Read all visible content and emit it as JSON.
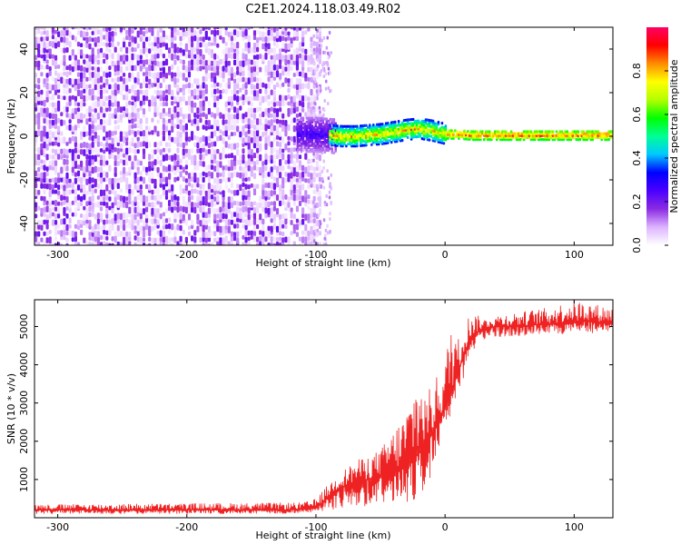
{
  "title": "C2E1.2024.118.03.49.R02",
  "chart_data": [
    {
      "type": "heatmap",
      "xlabel": "Height of straight line (km)",
      "ylabel": "Frequency (Hz)",
      "xlim": [
        -318,
        130
      ],
      "ylim": [
        -50,
        50
      ],
      "xticks": [
        -300,
        -200,
        -100,
        0,
        100
      ],
      "yticks": [
        -40,
        -20,
        0,
        20,
        40
      ],
      "colorbar": {
        "label": "Normalized spectral amplitude",
        "range": [
          0,
          1
        ],
        "ticks": [
          0.0,
          0.2,
          0.4,
          0.6,
          0.8
        ],
        "colormap": [
          "#ffffff",
          "#dcb4ff",
          "#8a2be2",
          "#4b00ff",
          "#0000ff",
          "#00c8ff",
          "#00ff96",
          "#00ff00",
          "#b4ff00",
          "#ffff00",
          "#ff8c00",
          "#ff0000",
          "#ff0064"
        ]
      },
      "regions": [
        {
          "x_range": [
            -318,
            -97
          ],
          "freq_range": [
            -50,
            50
          ],
          "amplitude_range": [
            0.0,
            0.2
          ],
          "description": "broadband noise"
        },
        {
          "x_range": [
            -115,
            -85
          ],
          "freq_range": [
            -8,
            8
          ],
          "amplitude_range": [
            0.1,
            0.3
          ]
        },
        {
          "x_range": [
            -90,
            0
          ],
          "freq_range": [
            -3,
            6
          ],
          "amplitude_range": [
            0.3,
            0.9
          ]
        },
        {
          "x_range": [
            0,
            130
          ],
          "freq_range": [
            -2,
            2
          ],
          "amplitude_range": [
            0.5,
            0.95
          ]
        }
      ],
      "signal_track": {
        "x": [
          -112,
          -100,
          -90,
          -80,
          -70,
          -60,
          -50,
          -40,
          -30,
          -20,
          -10,
          0,
          10,
          20,
          40,
          60,
          80,
          100,
          120,
          130
        ],
        "freq": [
          1.0,
          1.0,
          0.5,
          0.0,
          0.0,
          0.5,
          1.0,
          2.0,
          3.0,
          3.5,
          2.5,
          1.0,
          1.0,
          0.5,
          0.5,
          0.5,
          0.5,
          0.5,
          0.5,
          0.5
        ]
      }
    },
    {
      "type": "line",
      "xlabel": "Height of straight line (km)",
      "ylabel": "SNR (10 * v/v)",
      "xlim": [
        -318,
        130
      ],
      "ylim": [
        0,
        5700
      ],
      "xticks": [
        -300,
        -200,
        -100,
        0,
        100
      ],
      "yticks": [
        1000,
        2000,
        3000,
        4000,
        5000
      ],
      "color": "#ee2222",
      "series": [
        {
          "x": [
            -318,
            -300,
            -250,
            -200,
            -150,
            -120,
            -100,
            -95,
            -90,
            -85,
            -80,
            -70,
            -60,
            -50,
            -40,
            -30,
            -25,
            -20,
            -15,
            -10,
            -5,
            0,
            5,
            10,
            15,
            20,
            25,
            30,
            40,
            50,
            60,
            70,
            80,
            90,
            100,
            110,
            120,
            130
          ],
          "y": [
            200,
            210,
            200,
            210,
            200,
            210,
            250,
            400,
            550,
            700,
            800,
            900,
            1000,
            1100,
            1200,
            1400,
            1500,
            1700,
            1900,
            2200,
            2500,
            2900,
            3300,
            3800,
            4300,
            4700,
            4850,
            4950,
            5000,
            5000,
            5000,
            5050,
            5050,
            5100,
            5100,
            5150,
            5100,
            5100
          ]
        }
      ],
      "noise_envelope": {
        "x": [
          -318,
          -110,
          -100,
          -90,
          -80,
          -70,
          -60,
          -50,
          -40,
          -30,
          -25,
          -20,
          -15,
          -10,
          -5,
          0,
          5,
          10,
          15,
          20,
          30,
          40,
          60,
          80,
          100,
          130
        ],
        "low": [
          100,
          100,
          150,
          200,
          200,
          250,
          300,
          350,
          350,
          400,
          450,
          500,
          700,
          1200,
          1800,
          2300,
          2700,
          3000,
          3500,
          4300,
          4650,
          4700,
          4750,
          4800,
          4800,
          4850
        ],
        "high": [
          350,
          400,
          500,
          900,
          1200,
          1500,
          1600,
          1800,
          2300,
          2800,
          3500,
          3800,
          3200,
          3500,
          3800,
          4000,
          5400,
          4700,
          5100,
          5400,
          5200,
          5300,
          5400,
          5500,
          5700,
          5500
        ]
      }
    }
  ]
}
